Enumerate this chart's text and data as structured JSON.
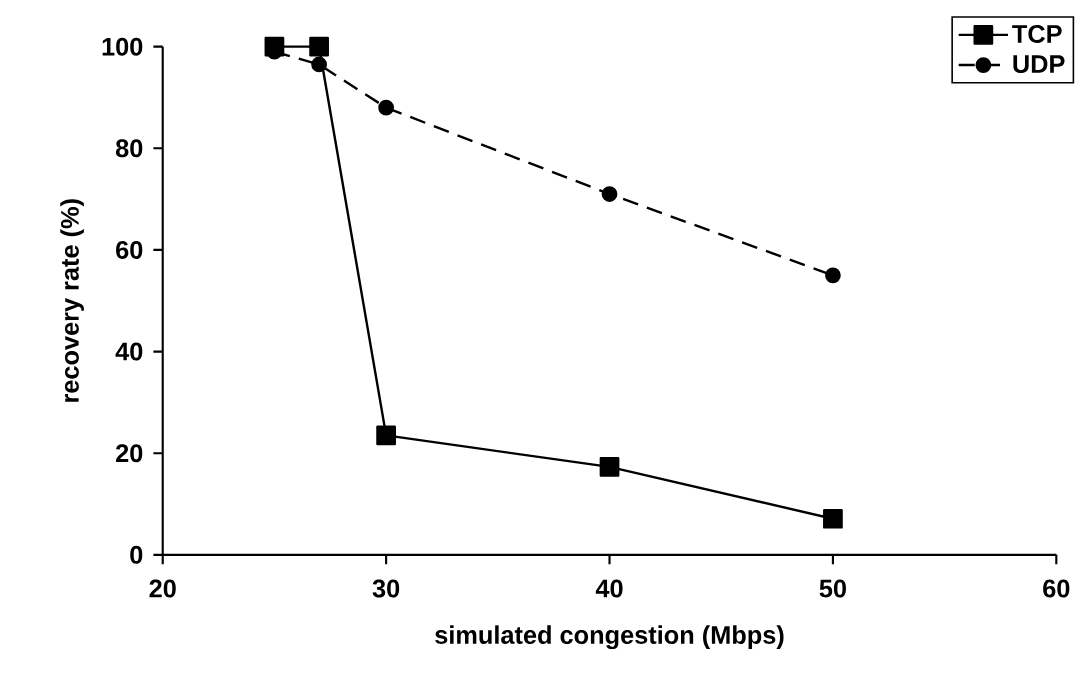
{
  "chart_data": {
    "type": "line",
    "xlabel": "simulated congestion (Mbps)",
    "ylabel": "recovery rate (%)",
    "x": [
      25,
      27,
      30,
      40,
      50
    ],
    "series": [
      {
        "name": "TCP",
        "color": "#000000",
        "values": [
          100,
          100,
          23.5,
          17.3,
          7.1
        ],
        "marker": "square",
        "line_style": "solid"
      },
      {
        "name": "UDP",
        "color": "#000000",
        "values": [
          99,
          96.5,
          88,
          71,
          55
        ],
        "marker": "circle",
        "line_style": "dashed"
      }
    ],
    "xlim": [
      20,
      60
    ],
    "xticks": [
      20,
      30,
      40,
      50,
      60
    ],
    "ylim": [
      0,
      100
    ],
    "yticks": [
      0,
      20,
      40,
      60,
      80,
      100
    ],
    "grid": false,
    "legend": "top right"
  }
}
